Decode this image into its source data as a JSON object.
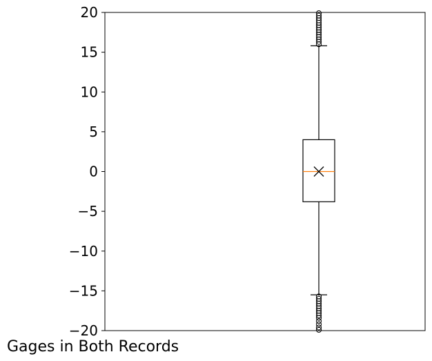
{
  "chart_data": {
    "type": "box",
    "categories": [
      "Gages in Both Records"
    ],
    "ylim": [
      -20,
      20
    ],
    "yticks": [
      -20,
      -15,
      -10,
      -5,
      0,
      5,
      10,
      15,
      20
    ],
    "ytick_labels": [
      "−20",
      "−15",
      "−10",
      "−5",
      "0",
      "5",
      "10",
      "15",
      "20"
    ],
    "grid": false,
    "box": {
      "q1": -3.8,
      "median": 0,
      "q3": 4.0,
      "whisker_low": -15.5,
      "whisker_high": 15.8,
      "mean": 0,
      "outliers_high": [
        16.0,
        16.3,
        16.6,
        16.9,
        17.2,
        17.5,
        17.8,
        18.1,
        18.4,
        18.7,
        19.0,
        19.3,
        19.6,
        19.9
      ],
      "outliers_low": [
        -15.7,
        -16.0,
        -16.3,
        -16.6,
        -16.9,
        -17.2,
        -17.5,
        -17.8,
        -18.1,
        -18.4,
        -18.8,
        -19.2,
        -19.6,
        -19.9
      ]
    },
    "colors": {
      "box": "#000000",
      "median": "#ff7f0e",
      "mean_marker": "#000000"
    }
  }
}
